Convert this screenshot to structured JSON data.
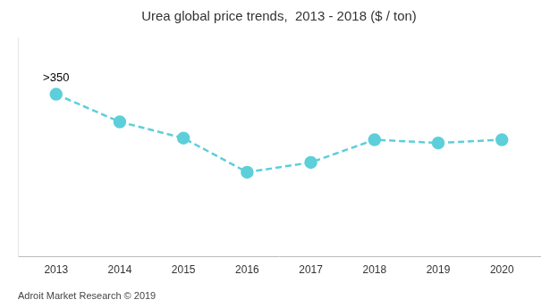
{
  "chart_data": {
    "type": "line",
    "title": "Urea global price trends,  2013 - 2018 ($ / ton)",
    "footer": "Adroit Market Research © 2019",
    "x": [
      2013,
      2014,
      2015,
      2016,
      2017,
      2018,
      2019,
      2020
    ],
    "values": [
      100,
      83,
      73,
      52,
      58,
      72,
      70,
      72
    ],
    "color": "#5DCFDA",
    "line_style": "dashed",
    "marker": "circle",
    "xlim": [
      2012.4,
      2020.6
    ],
    "xticks": [
      2013,
      2014,
      2015,
      2016,
      2017,
      2018,
      2019,
      2020
    ],
    "ylim": [
      0,
      135
    ],
    "tick_labels": "x",
    "grid": false,
    "annotations": [
      {
        "text": ">350",
        "x": 2013,
        "y": 100
      }
    ]
  }
}
